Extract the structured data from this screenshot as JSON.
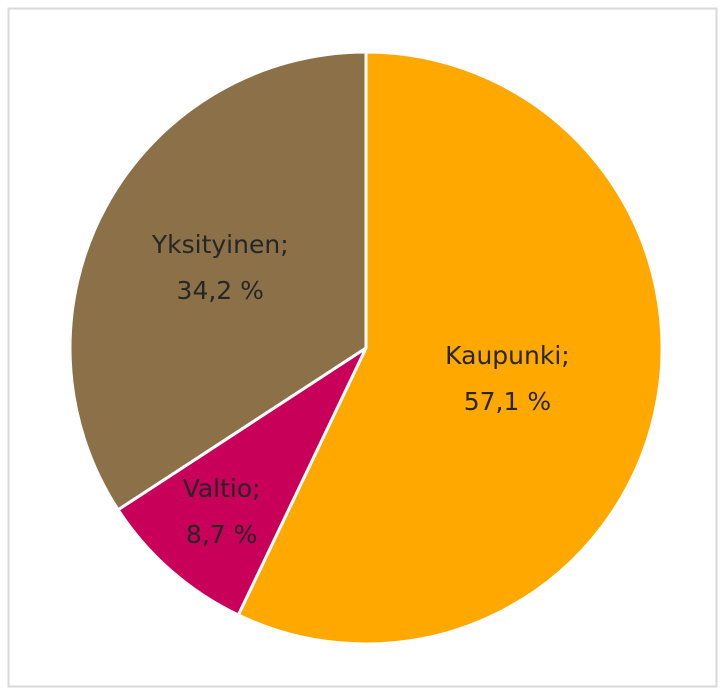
{
  "chart_data": {
    "type": "pie",
    "categories": [
      "Kaupunki;",
      "Valtio;",
      "Yksityinen;"
    ],
    "values": [
      57.1,
      8.7,
      34.2
    ],
    "value_labels": [
      "57,1 %",
      "8,7 %",
      "34,2 %"
    ],
    "colors": [
      "#FFA800",
      "#C8005A",
      "#8B7048"
    ]
  }
}
